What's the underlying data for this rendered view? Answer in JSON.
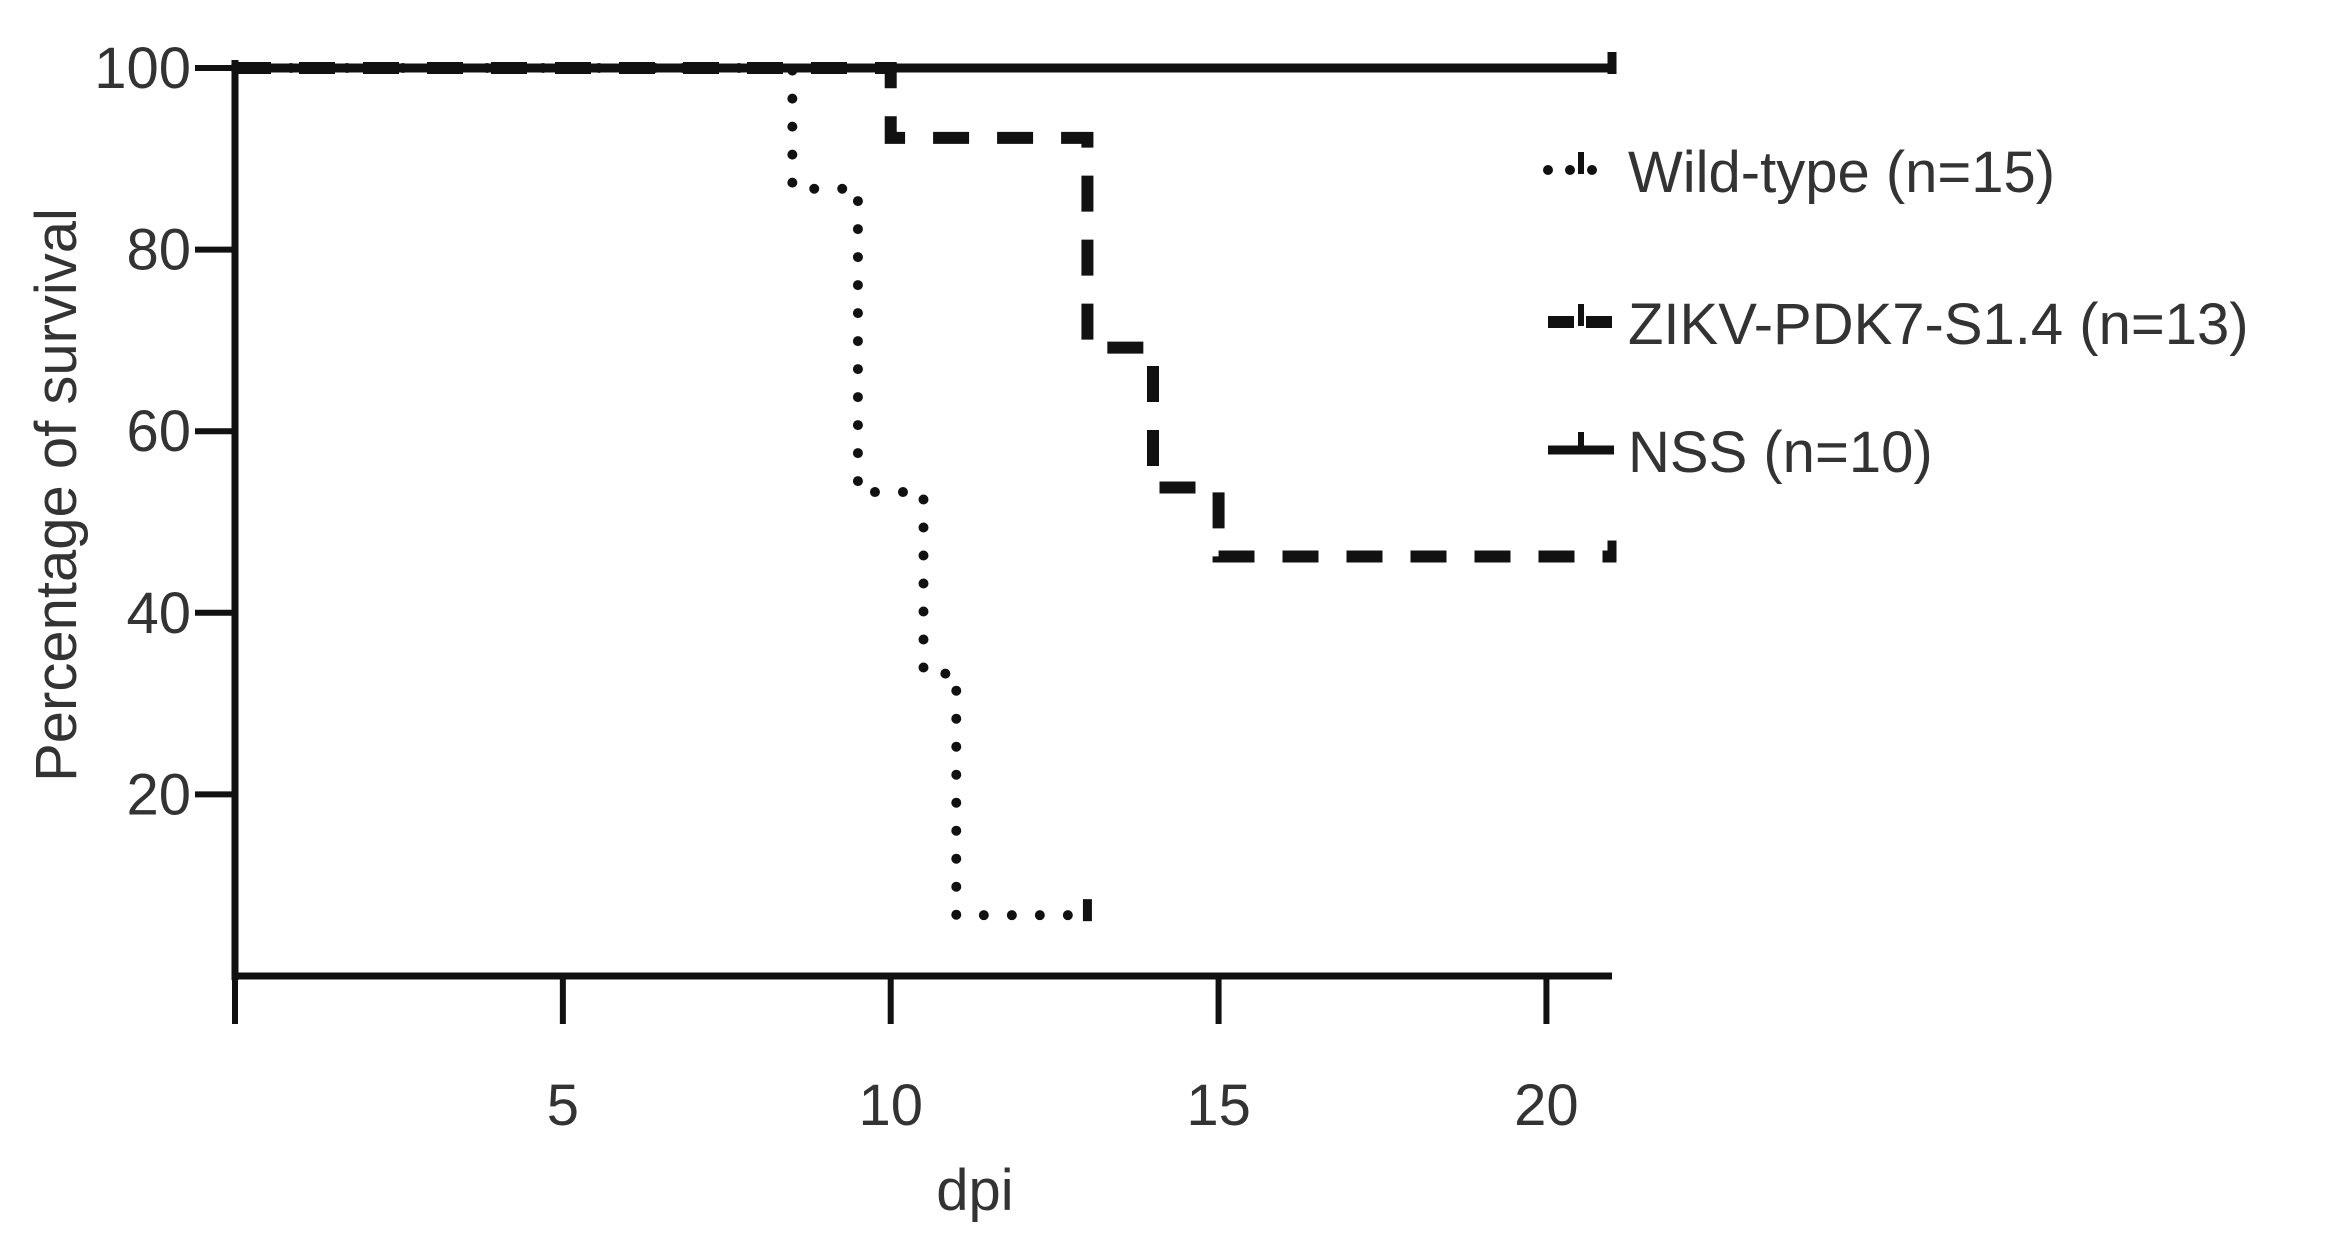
{
  "chart_data": {
    "type": "line",
    "step": true,
    "xlabel": "dpi",
    "ylabel": "Percentage of survival",
    "xlim": [
      0,
      21
    ],
    "ylim": [
      0,
      100
    ],
    "xticks": [
      5,
      10,
      15,
      20
    ],
    "yticks": [
      20,
      40,
      60,
      80,
      100
    ],
    "xtick_labels": [
      "5",
      "10",
      "15",
      "20"
    ],
    "ytick_labels": [
      "20",
      "40",
      "60",
      "80",
      "100"
    ],
    "legend_position": "right",
    "series": [
      {
        "name": "Wild-type (n=15)",
        "style": "dotted",
        "color": "#111111",
        "x": [
          0,
          8,
          8.5,
          9,
          9.5,
          10,
          10.5,
          11,
          13
        ],
        "y": [
          100,
          100,
          86.7,
          86.7,
          53.3,
          53.3,
          33.3,
          6.7,
          6.7
        ]
      },
      {
        "name": "ZIKV-PDK7-S1.4 (n=13)",
        "style": "dashed",
        "color": "#111111",
        "x": [
          0,
          10,
          13,
          14,
          15,
          21
        ],
        "y": [
          100,
          92.3,
          69.2,
          53.8,
          46.2,
          46.2
        ]
      },
      {
        "name": "NSS (n=10)",
        "style": "solid",
        "color": "#111111",
        "x": [
          0,
          21
        ],
        "y": [
          100,
          100
        ]
      }
    ]
  }
}
